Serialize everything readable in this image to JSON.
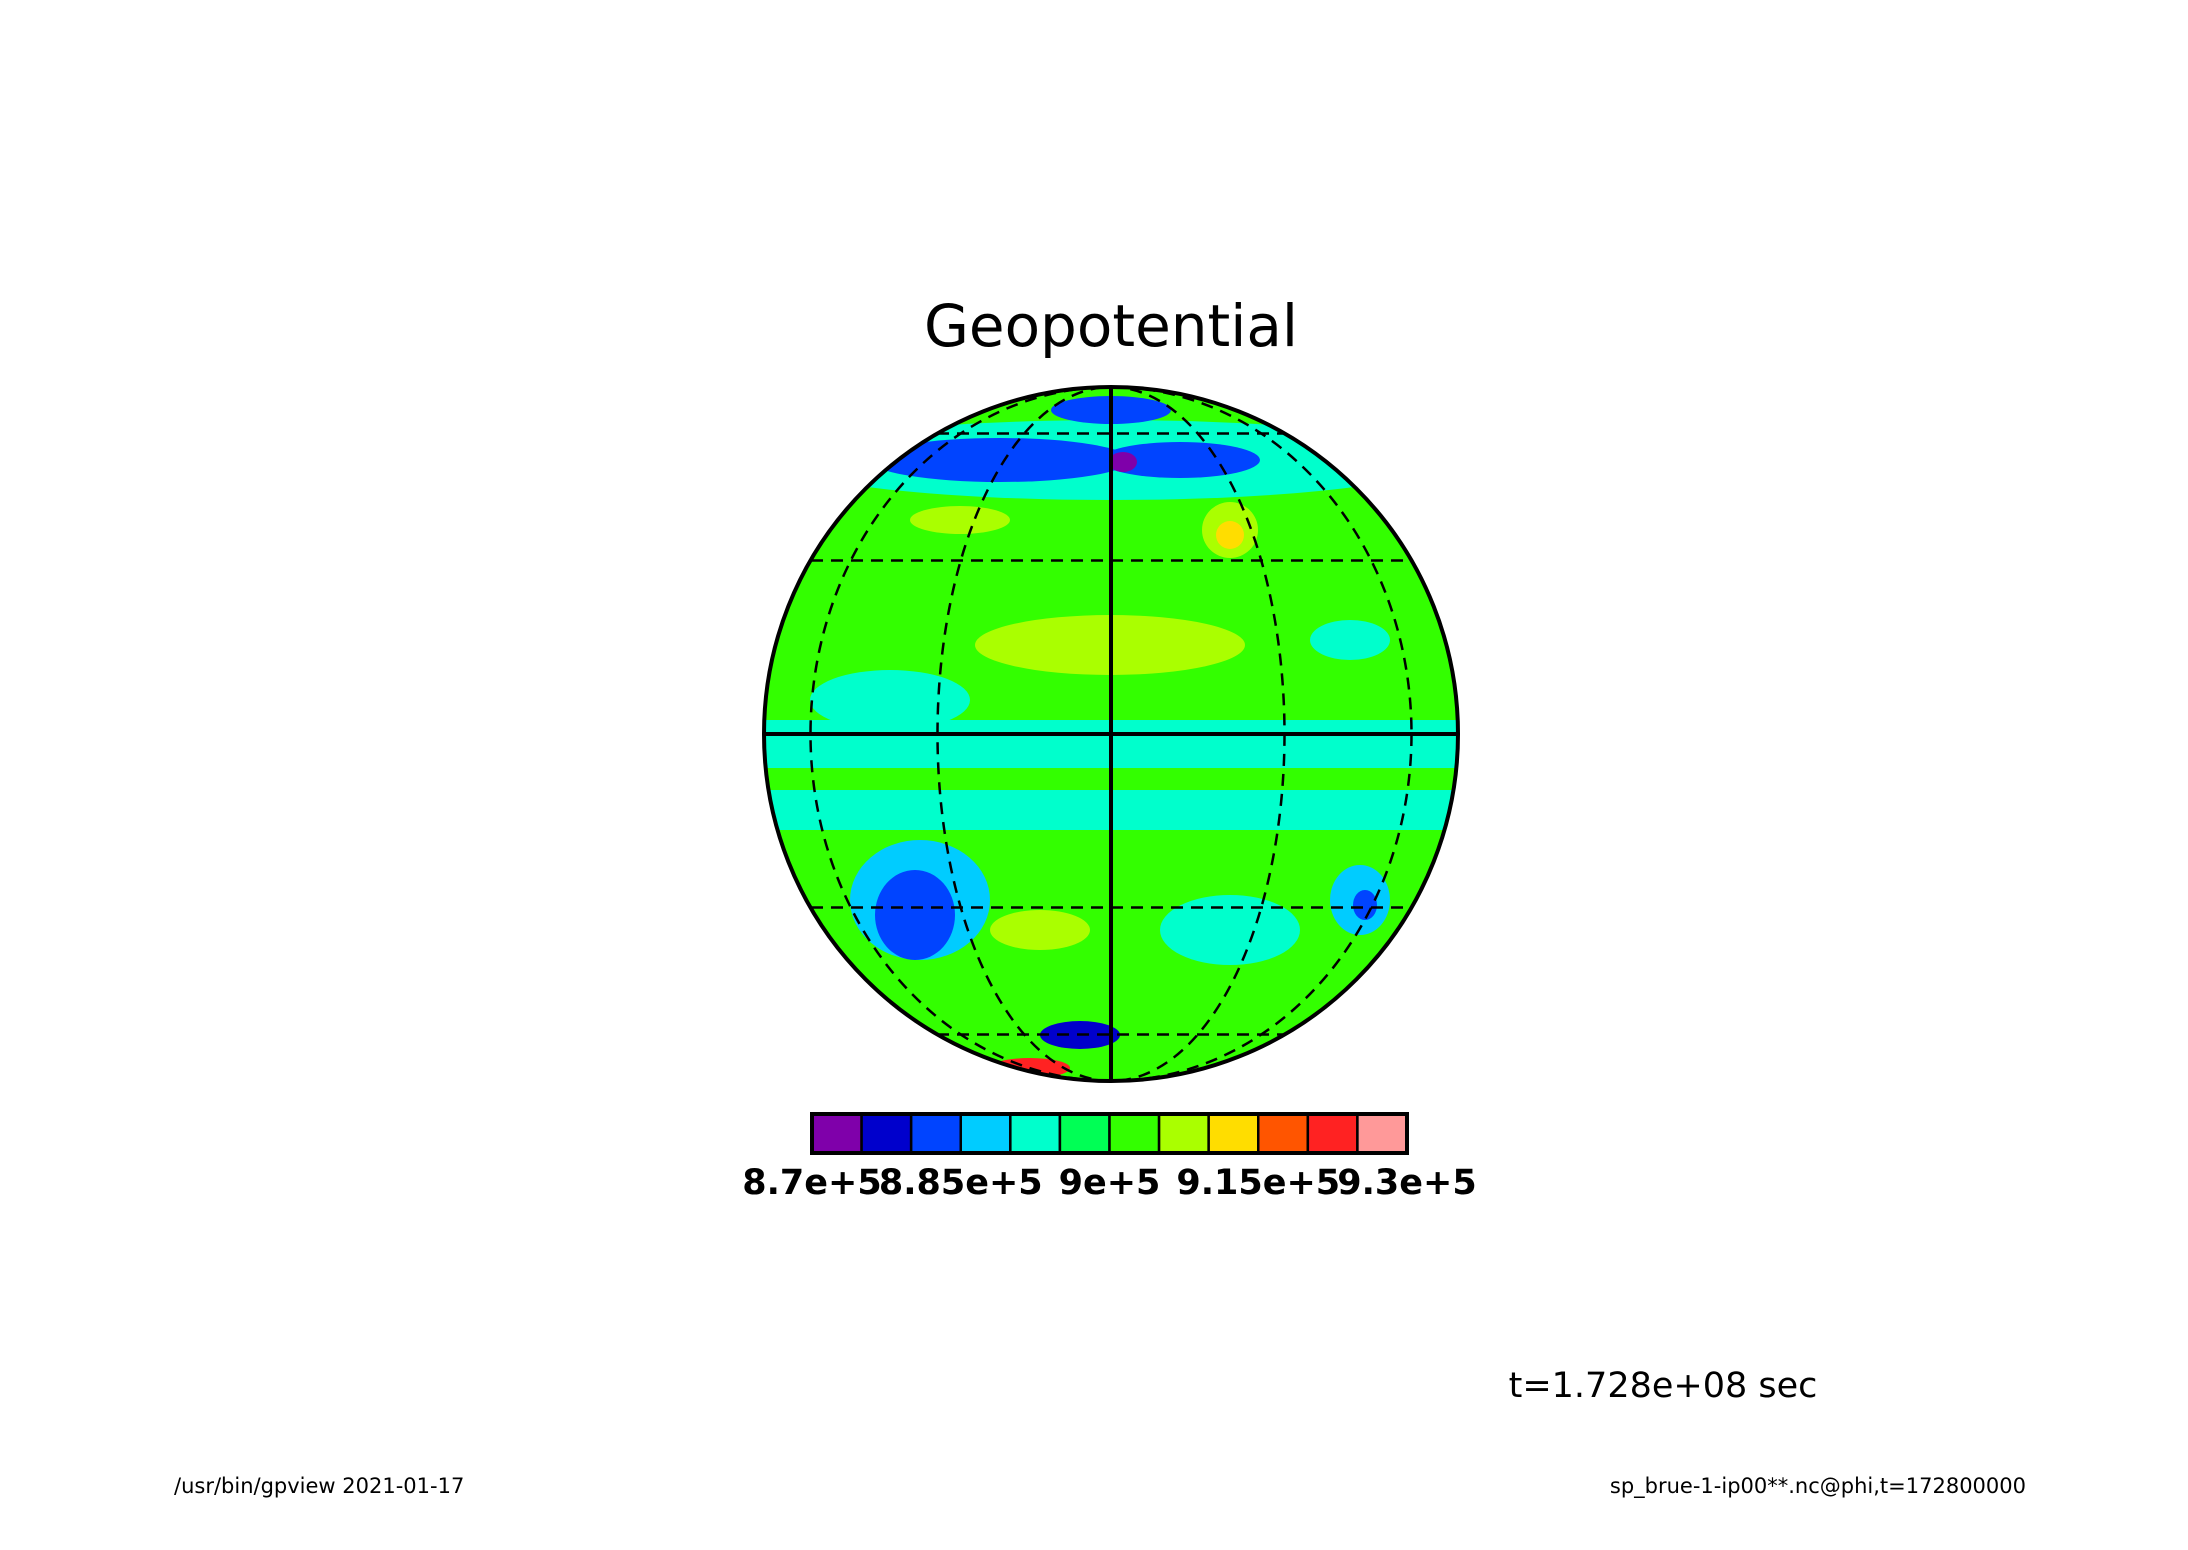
{
  "chart_data": {
    "type": "contour",
    "title": "Geopotential",
    "colorbar": {
      "lim": [
        870000,
        930000
      ],
      "ticks": [
        {
          "value": 870000,
          "label": "8.7e+5"
        },
        {
          "value": 885000,
          "label": "8.85e+5"
        },
        {
          "value": 900000,
          "label": "9e+5"
        },
        {
          "value": 915000,
          "label": "9.15e+5"
        },
        {
          "value": 930000,
          "label": "9.3e+5"
        }
      ],
      "colors": [
        "#7f00aa",
        "#0000cc",
        "#0044ff",
        "#00ccff",
        "#00ffcc",
        "#00ff55",
        "#33ff00",
        "#aaff00",
        "#ffdd00",
        "#ff5500",
        "#ff2222",
        "#ff9999"
      ]
    },
    "annotation": "t=1.728e+08 sec",
    "footer_left": "/usr/bin/gpview  2021-01-17",
    "footer_right": "sp_brue-1-ip00**.nc@phi,t=172800000"
  }
}
